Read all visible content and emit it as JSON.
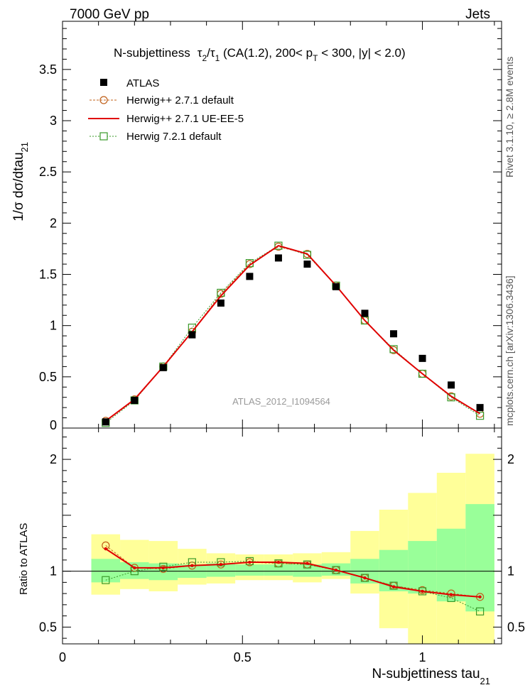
{
  "header": {
    "left": "7000 GeV pp",
    "right": "Jets"
  },
  "side_text": {
    "rivet": "Rivet 3.1.10, ≥ 2.8M events",
    "mcplots": "mcplots.cern.ch [arXiv:1306.3436]"
  },
  "chart_data": [
    {
      "type": "scatter",
      "title": "N-subjettiness  τ₂/τ₁ (CA(1.2), 200< p_T < 300, |y| < 2.0)",
      "title_parts": {
        "lead": "N-subjettiness",
        "tau": "τ",
        "sub2": "2",
        "slash": "/τ",
        "sub1": "1",
        "mid": " (CA(1.2), 200< p",
        "subT": "T",
        "tail": " < 300, |y| < 2.0)"
      },
      "ylabel": "1/σ dσ/dtau",
      "ylabel_sub": "21",
      "watermark": "ATLAS_2012_I1094564",
      "xlim": [
        0,
        1.22
      ],
      "ylim": [
        0,
        3.97
      ],
      "y_ticks": [
        {
          "v": 0.5,
          "label": "0.5"
        },
        {
          "v": 1,
          "label": "1"
        },
        {
          "v": 1.5,
          "label": "1.5"
        },
        {
          "v": 2,
          "label": "2"
        },
        {
          "v": 2.5,
          "label": "2.5"
        },
        {
          "v": 3,
          "label": "3"
        },
        {
          "v": 3.5,
          "label": "3.5"
        }
      ],
      "y_tick_clipped": "0",
      "x": [
        0.12,
        0.2,
        0.28,
        0.36,
        0.44,
        0.52,
        0.6,
        0.68,
        0.76,
        0.84,
        0.92,
        1.0,
        1.08,
        1.16
      ],
      "series": [
        {
          "name": "ATLAS",
          "style": "marker-square-filled",
          "color": "#000000",
          "values": [
            0.06,
            0.27,
            0.59,
            0.91,
            1.22,
            1.48,
            1.66,
            1.6,
            1.38,
            1.12,
            0.92,
            0.68,
            0.42,
            0.2
          ]
        },
        {
          "name": "Herwig++ 2.7.1 default",
          "style": "dashed-circle",
          "color": "#c0601a",
          "values": [
            0.07,
            0.28,
            0.6,
            0.94,
            1.31,
            1.6,
            1.77,
            1.7,
            1.39,
            1.05,
            0.76,
            0.53,
            0.31,
            0.14
          ]
        },
        {
          "name": "Herwig++ 2.7.1 UE-EE-5",
          "style": "solid-line",
          "color": "#e00000",
          "values": [
            0.07,
            0.28,
            0.6,
            0.94,
            1.29,
            1.59,
            1.78,
            1.7,
            1.39,
            1.05,
            0.76,
            0.53,
            0.31,
            0.14
          ]
        },
        {
          "name": "Herwig 7.2.1 default",
          "style": "dotted-open-square",
          "color": "#3a9a2a",
          "values": [
            0.05,
            0.27,
            0.6,
            0.98,
            1.32,
            1.61,
            1.78,
            1.69,
            1.39,
            1.05,
            0.77,
            0.53,
            0.3,
            0.12
          ]
        }
      ]
    },
    {
      "type": "area",
      "ylabel": "Ratio to ATLAS",
      "xlabel": "N-subjettiness tau",
      "xlabel_sub": "21",
      "xlim": [
        0,
        1.22
      ],
      "ylim": [
        0.35,
        2.28
      ],
      "y_ticks": [
        {
          "v": 0.5,
          "label": "0.5"
        },
        {
          "v": 1,
          "label": "1"
        },
        {
          "v": 2,
          "label": "2"
        }
      ],
      "x_ticks": [
        {
          "v": 0,
          "label": "0"
        },
        {
          "v": 0.5,
          "label": "0.5"
        },
        {
          "v": 1,
          "label": "1"
        }
      ],
      "reference_line": 1,
      "bin_edges": [
        0.08,
        0.16,
        0.24,
        0.32,
        0.4,
        0.48,
        0.56,
        0.64,
        0.72,
        0.8,
        0.88,
        0.96,
        1.04,
        1.12,
        1.2
      ],
      "band_stat": {
        "color": "#99ff99",
        "lo": [
          0.9,
          0.93,
          0.92,
          0.94,
          0.95,
          0.96,
          0.96,
          0.95,
          0.96,
          0.89,
          0.82,
          0.8,
          0.73,
          0.64
        ],
        "hi": [
          1.11,
          1.08,
          1.07,
          1.06,
          1.07,
          1.06,
          1.06,
          1.06,
          1.07,
          1.11,
          1.19,
          1.27,
          1.38,
          1.6
        ]
      },
      "band_total": {
        "color": "#ffff99",
        "lo": [
          0.79,
          0.84,
          0.82,
          0.88,
          0.89,
          0.92,
          0.92,
          0.9,
          0.93,
          0.8,
          0.49,
          0.35,
          0.35,
          0.35
        ],
        "hi": [
          1.33,
          1.28,
          1.27,
          1.2,
          1.16,
          1.15,
          1.15,
          1.16,
          1.17,
          1.36,
          1.55,
          1.7,
          1.88,
          2.05
        ]
      },
      "x": [
        0.12,
        0.2,
        0.28,
        0.36,
        0.44,
        0.52,
        0.6,
        0.68,
        0.76,
        0.84,
        0.92,
        1.0,
        1.08,
        1.16
      ],
      "series": [
        {
          "name": "Herwig++ 2.7.1 default",
          "style": "dashed-circle",
          "color": "#c0601a",
          "values": [
            1.23,
            1.03,
            1.02,
            1.05,
            1.06,
            1.08,
            1.07,
            1.06,
            1.01,
            0.94,
            0.87,
            0.83,
            0.8,
            0.77
          ]
        },
        {
          "name": "Herwig++ 2.7.1 UE-EE-5",
          "style": "solid-line",
          "color": "#e00000",
          "values": [
            1.2,
            1.03,
            1.03,
            1.05,
            1.06,
            1.08,
            1.08,
            1.07,
            1.01,
            0.94,
            0.86,
            0.82,
            0.79,
            0.77
          ]
        },
        {
          "name": "Herwig 7.2.1 default",
          "style": "dotted-open-square",
          "color": "#3a9a2a",
          "values": [
            0.92,
            1.0,
            1.04,
            1.08,
            1.08,
            1.09,
            1.07,
            1.06,
            1.01,
            0.94,
            0.87,
            0.82,
            0.76,
            0.64
          ]
        }
      ]
    }
  ]
}
